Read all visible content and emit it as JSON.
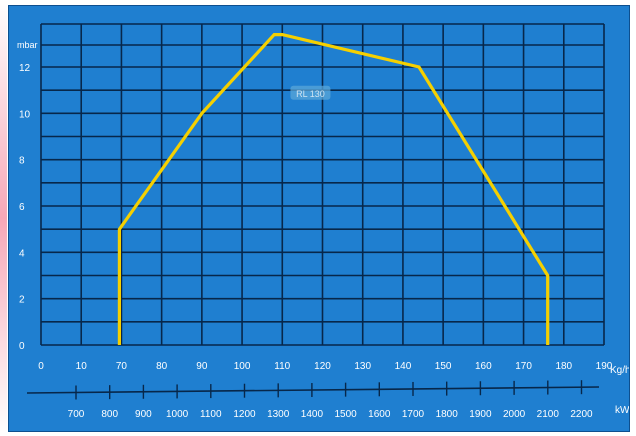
{
  "chart_data": {
    "type": "line",
    "ylabel": "mbar",
    "xlabel_primary": "Kg/h",
    "xlabel_secondary": "kW",
    "x_ticks_primary": [
      0,
      10,
      70,
      80,
      90,
      100,
      110,
      120,
      130,
      140,
      150,
      160,
      170,
      180,
      190
    ],
    "x_ticks_secondary": [
      700,
      800,
      900,
      1000,
      1100,
      1200,
      1300,
      1400,
      1500,
      1600,
      1700,
      1800,
      1900,
      2000,
      2100,
      2200
    ],
    "y_ticks": [
      0,
      2,
      4,
      6,
      8,
      10,
      12
    ],
    "series": [
      {
        "name": "RL 130",
        "color": "#f5d000",
        "points": [
          [
            67,
            0
          ],
          [
            67,
            5
          ],
          [
            90,
            10
          ],
          [
            108,
            13.4
          ],
          [
            110,
            13.4
          ],
          [
            144,
            12
          ],
          [
            176,
            3
          ],
          [
            176,
            0
          ]
        ]
      }
    ],
    "grid": true,
    "colors": {
      "background": "#1f7fd0",
      "grid": "#07274a",
      "curve": "#f5d000",
      "text": "#ffffff"
    }
  }
}
